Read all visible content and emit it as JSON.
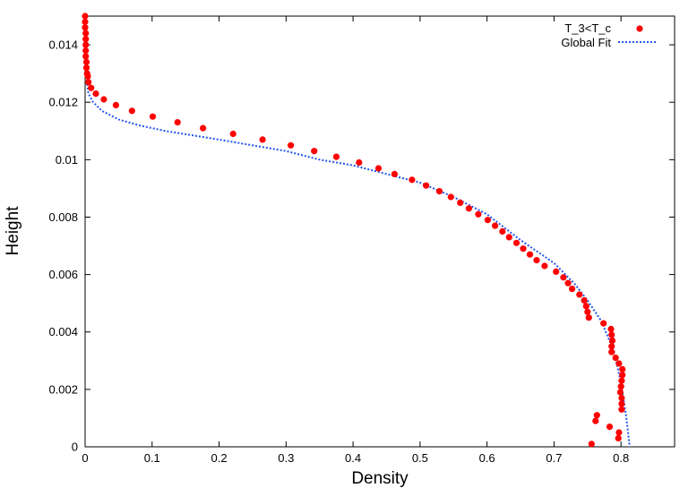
{
  "chart_data": {
    "type": "scatter",
    "xlabel": "Density",
    "ylabel": "Height",
    "xlim": [
      0,
      0.88
    ],
    "ylim": [
      0,
      0.015
    ],
    "xticks": [
      0,
      0.1,
      0.2,
      0.3,
      0.4,
      0.5,
      0.6,
      0.7,
      0.8
    ],
    "xtick_labels": [
      "0",
      "0.1",
      "0.2",
      "0.3",
      "0.4",
      "0.5",
      "0.6",
      "0.7",
      "0.8"
    ],
    "yticks": [
      0,
      0.002,
      0.004,
      0.006,
      0.008,
      0.01,
      0.012,
      0.014
    ],
    "ytick_labels": [
      "0",
      "0.002",
      "0.004",
      "0.006",
      "0.008",
      "0.01",
      "0.012",
      "0.014"
    ],
    "legend_position": "top-right",
    "series": [
      {
        "name": "T_3<T_c",
        "style": "points",
        "color": "#ff0000",
        "points": [
          [
            0.0,
            0.015
          ],
          [
            0.0,
            0.0148
          ],
          [
            0.0,
            0.0146
          ],
          [
            0.001,
            0.0144
          ],
          [
            0.001,
            0.0142
          ],
          [
            0.001,
            0.014
          ],
          [
            0.001,
            0.0138
          ],
          [
            0.001,
            0.0136
          ],
          [
            0.002,
            0.0134
          ],
          [
            0.002,
            0.0132
          ],
          [
            0.003,
            0.013
          ],
          [
            0.004,
            0.0129
          ],
          [
            0.005,
            0.0127
          ],
          [
            0.009,
            0.0125
          ],
          [
            0.016,
            0.0123
          ],
          [
            0.028,
            0.0121
          ],
          [
            0.046,
            0.0119
          ],
          [
            0.07,
            0.0117
          ],
          [
            0.101,
            0.0115
          ],
          [
            0.138,
            0.0113
          ],
          [
            0.176,
            0.0111
          ],
          [
            0.221,
            0.0109
          ],
          [
            0.265,
            0.0107
          ],
          [
            0.307,
            0.0105
          ],
          [
            0.342,
            0.0103
          ],
          [
            0.375,
            0.0101
          ],
          [
            0.409,
            0.0099
          ],
          [
            0.438,
            0.0097
          ],
          [
            0.462,
            0.0095
          ],
          [
            0.488,
            0.0093
          ],
          [
            0.509,
            0.0091
          ],
          [
            0.529,
            0.0089
          ],
          [
            0.546,
            0.0087
          ],
          [
            0.56,
            0.0085
          ],
          [
            0.573,
            0.0083
          ],
          [
            0.587,
            0.0081
          ],
          [
            0.601,
            0.0079
          ],
          [
            0.612,
            0.0077
          ],
          [
            0.623,
            0.0075
          ],
          [
            0.633,
            0.0073
          ],
          [
            0.644,
            0.0071
          ],
          [
            0.654,
            0.0069
          ],
          [
            0.664,
            0.0067
          ],
          [
            0.674,
            0.0065
          ],
          [
            0.686,
            0.0063
          ],
          [
            0.703,
            0.0061
          ],
          [
            0.714,
            0.0059
          ],
          [
            0.721,
            0.0057
          ],
          [
            0.727,
            0.0055
          ],
          [
            0.738,
            0.0053
          ],
          [
            0.745,
            0.0051
          ],
          [
            0.748,
            0.0049
          ],
          [
            0.75,
            0.0047
          ],
          [
            0.752,
            0.0045
          ],
          [
            0.774,
            0.0043
          ],
          [
            0.785,
            0.0041
          ],
          [
            0.786,
            0.0039
          ],
          [
            0.787,
            0.0037
          ],
          [
            0.786,
            0.0035
          ],
          [
            0.786,
            0.0033
          ],
          [
            0.792,
            0.0031
          ],
          [
            0.797,
            0.0029
          ],
          [
            0.802,
            0.0027
          ],
          [
            0.802,
            0.0025
          ],
          [
            0.801,
            0.0023
          ],
          [
            0.8,
            0.0021
          ],
          [
            0.799,
            0.0019
          ],
          [
            0.801,
            0.0017
          ],
          [
            0.801,
            0.0015
          ],
          [
            0.801,
            0.0013
          ],
          [
            0.764,
            0.0011
          ],
          [
            0.762,
            0.0009
          ],
          [
            0.783,
            0.0007
          ],
          [
            0.797,
            0.0005
          ],
          [
            0.796,
            0.0003
          ],
          [
            0.756,
            0.0001
          ]
        ]
      },
      {
        "name": "Global Fit",
        "style": "dotted-line",
        "color": "#2255ee",
        "points": [
          [
            0.0,
            0.015
          ],
          [
            0.001,
            0.0135
          ],
          [
            0.002,
            0.0128
          ],
          [
            0.005,
            0.0123
          ],
          [
            0.012,
            0.012
          ],
          [
            0.025,
            0.0117
          ],
          [
            0.05,
            0.0114
          ],
          [
            0.08,
            0.0112
          ],
          [
            0.12,
            0.011
          ],
          [
            0.2,
            0.0107
          ],
          [
            0.3,
            0.0103
          ],
          [
            0.35,
            0.01
          ],
          [
            0.4,
            0.0098
          ],
          [
            0.45,
            0.0095
          ],
          [
            0.5,
            0.0092
          ],
          [
            0.55,
            0.0087
          ],
          [
            0.6,
            0.0081
          ],
          [
            0.65,
            0.0072
          ],
          [
            0.7,
            0.0064
          ],
          [
            0.73,
            0.0057
          ],
          [
            0.75,
            0.0051
          ],
          [
            0.77,
            0.0044
          ],
          [
            0.79,
            0.0033
          ],
          [
            0.8,
            0.0022
          ],
          [
            0.808,
            0.001
          ],
          [
            0.813,
            0.0
          ]
        ]
      }
    ]
  }
}
